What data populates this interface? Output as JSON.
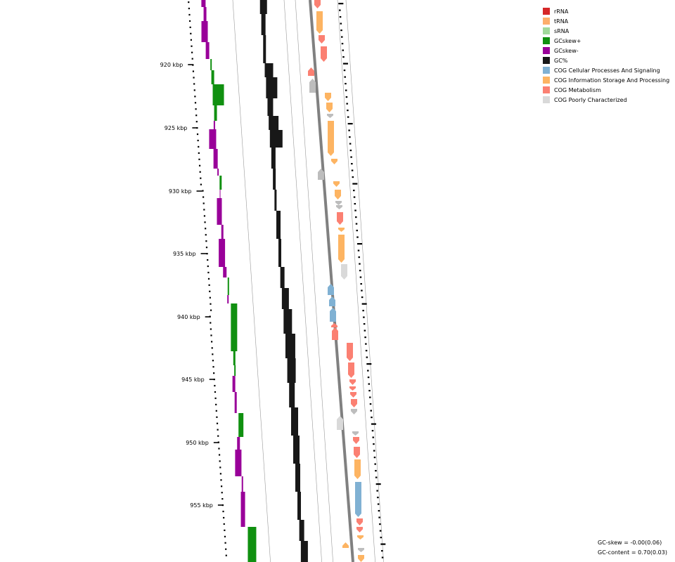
{
  "legend": [
    {
      "label": "rRNA",
      "color": "#d62728"
    },
    {
      "label": "tRNA",
      "color": "#fdae6b"
    },
    {
      "label": "sRNA",
      "color": "#a1d99b"
    },
    {
      "label": "GCskew+",
      "color": "#109010"
    },
    {
      "label": "GCskew-",
      "color": "#990099"
    },
    {
      "label": "GC%",
      "color": "#181818"
    },
    {
      "label": "COG Cellular Processes And Signaling",
      "color": "#80b1d3"
    },
    {
      "label": "COG Information Storage And Processing",
      "color": "#fdb462"
    },
    {
      "label": "COG Metabolism",
      "color": "#fb8072"
    },
    {
      "label": "COG Poorly Characterized",
      "color": "#d9d9d9"
    }
  ],
  "ticks": [
    "920 kbp",
    "925 kbp",
    "930 kbp",
    "935 kbp",
    "940 kbp",
    "945 kbp",
    "950 kbp",
    "955 kbp"
  ],
  "stats": {
    "gc_skew": "GC-skew = -0.00(0.06)",
    "gc_content": "GC-content = 0.70(0.03)"
  },
  "colors": {
    "grey_feature": "#bdbdbd",
    "backbone": "#808080",
    "guide": "#9a9a9a"
  }
}
